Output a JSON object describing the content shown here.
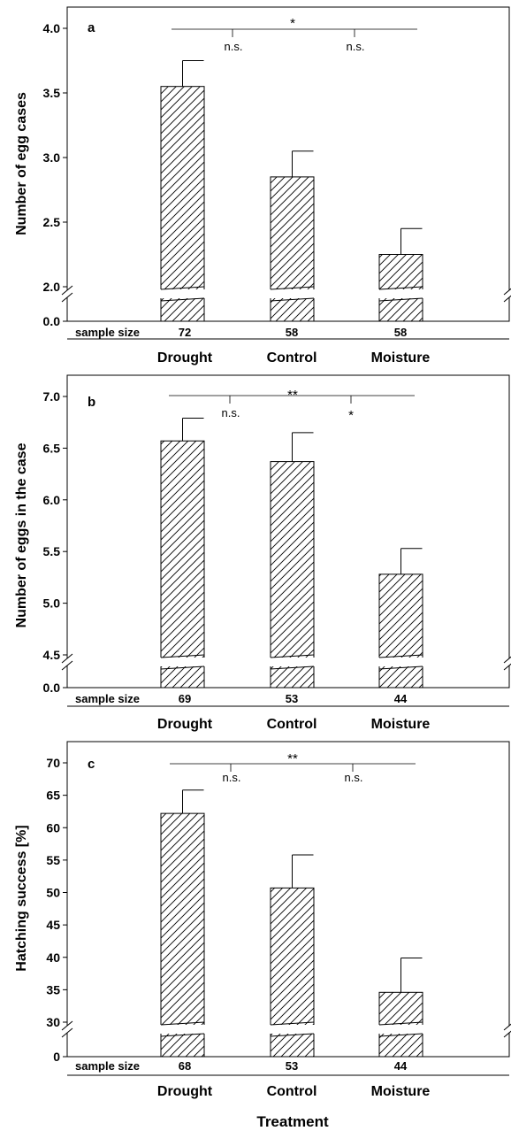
{
  "chart_data": [
    {
      "type": "bar",
      "panel_label": "a",
      "ylabel": "Number of egg cases",
      "categories": [
        "Drought",
        "Control",
        "Moisture"
      ],
      "values": [
        3.55,
        2.85,
        2.25
      ],
      "errors": [
        0.2,
        0.2,
        0.2
      ],
      "ylim": [
        2.0,
        4.0
      ],
      "yticks": [
        "4.0",
        "3.5",
        "3.0",
        "2.5",
        "2.0"
      ],
      "ytick_values": [
        4.0,
        3.5,
        3.0,
        2.5,
        2.0
      ],
      "axis_break": {
        "below": "0.0",
        "above": "2.0"
      },
      "sample_size_label": "sample size",
      "sample_sizes": [
        "72",
        "58",
        "58"
      ],
      "significance": {
        "overall": "*",
        "left": "n.s.",
        "right": "n.s."
      }
    },
    {
      "type": "bar",
      "panel_label": "b",
      "ylabel": "Number of eggs in the case",
      "categories": [
        "Drought",
        "Control",
        "Moisture"
      ],
      "values": [
        6.57,
        6.37,
        5.28
      ],
      "errors": [
        0.22,
        0.28,
        0.25
      ],
      "ylim": [
        4.5,
        7.0
      ],
      "yticks": [
        "7.0",
        "6.5",
        "6.0",
        "5.5",
        "5.0",
        "4.5"
      ],
      "ytick_values": [
        7.0,
        6.5,
        6.0,
        5.5,
        5.0,
        4.5
      ],
      "axis_break": {
        "below": "0.0",
        "above": "4.5"
      },
      "sample_size_label": "sample size",
      "sample_sizes": [
        "69",
        "53",
        "44"
      ],
      "significance": {
        "overall": "**",
        "left": "n.s.",
        "right": "*"
      }
    },
    {
      "type": "bar",
      "panel_label": "c",
      "ylabel": "Hatching success [%]",
      "categories": [
        "Drought",
        "Control",
        "Moisture"
      ],
      "values": [
        62.2,
        50.7,
        34.6
      ],
      "errors": [
        3.6,
        5.1,
        5.3
      ],
      "ylim": [
        30,
        70
      ],
      "yticks": [
        "70",
        "65",
        "60",
        "55",
        "50",
        "45",
        "40",
        "35",
        "30"
      ],
      "ytick_values": [
        70,
        65,
        60,
        55,
        50,
        45,
        40,
        35,
        30
      ],
      "axis_break": {
        "below": "0",
        "above": "30"
      },
      "sample_size_label": "sample size",
      "sample_sizes": [
        "68",
        "53",
        "44"
      ],
      "significance": {
        "overall": "**",
        "left": "n.s.",
        "right": "n.s."
      }
    }
  ],
  "xlabel": "Treatment"
}
